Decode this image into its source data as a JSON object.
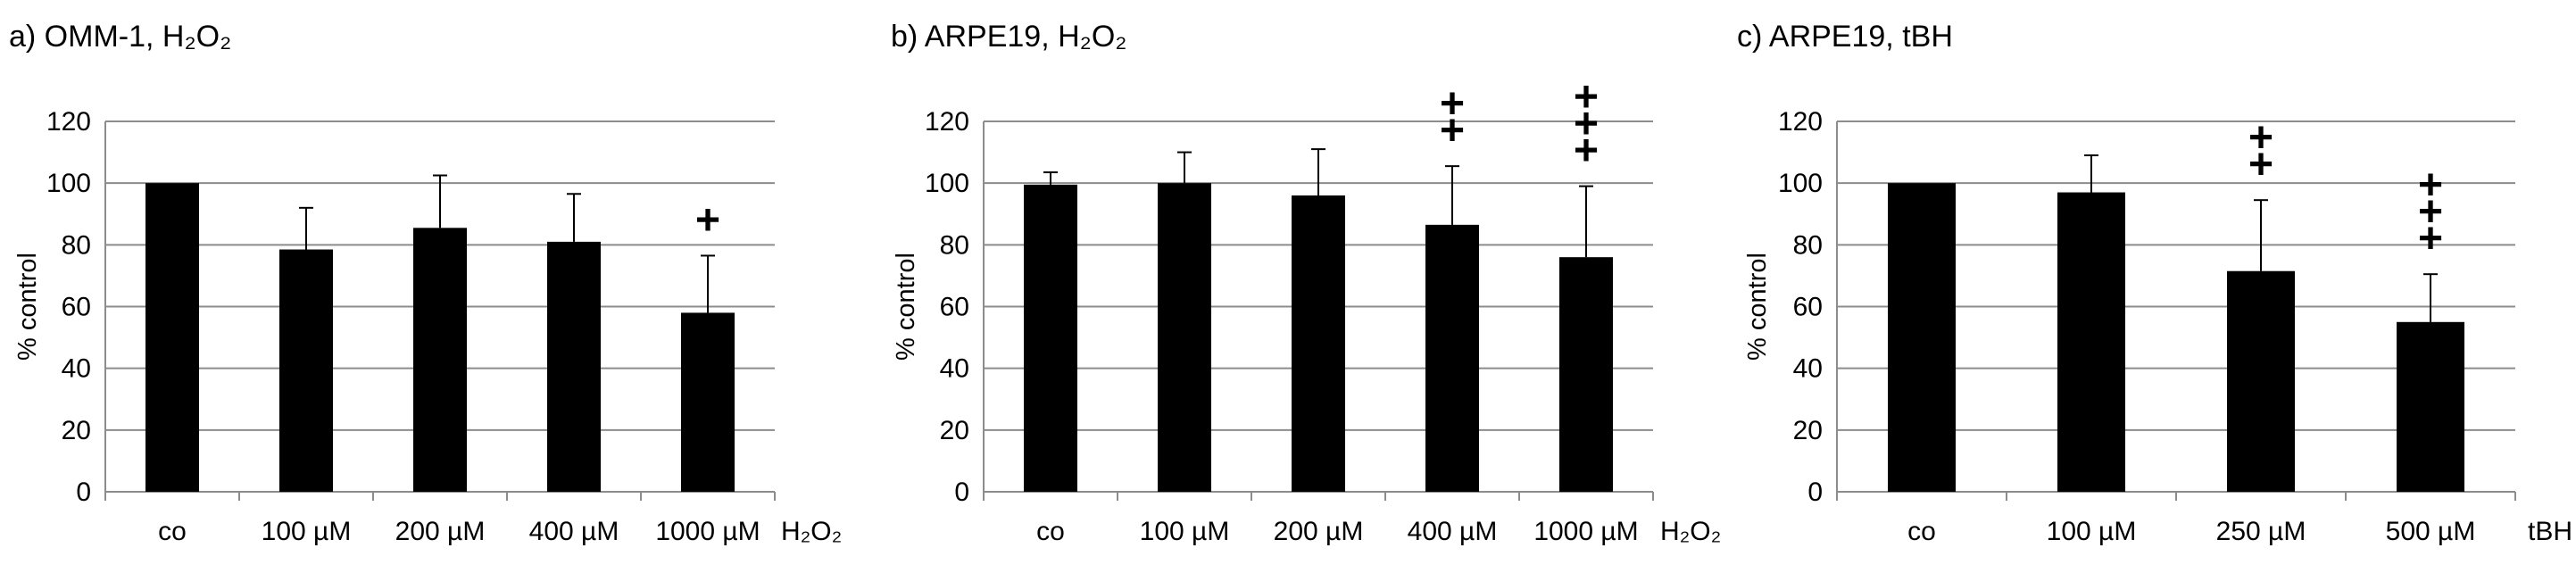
{
  "chart_data": [
    {
      "type": "bar",
      "title": "a) OMM-1, H₂O₂",
      "ylabel": "% control",
      "xlabel": "H₂O₂",
      "ylim": [
        0,
        120
      ],
      "yticks": [
        0,
        20,
        40,
        60,
        80,
        100,
        120
      ],
      "categories": [
        "co",
        "100 µM",
        "200 µM",
        "400 µM",
        "1000 µM"
      ],
      "values": [
        100,
        78.5,
        85.5,
        81,
        58
      ],
      "error_upper": [
        100,
        92,
        102.5,
        96.5,
        76.5
      ],
      "significance": [
        "",
        "",
        "",
        "",
        "+"
      ],
      "grid": true,
      "bar_color": "#000000"
    },
    {
      "type": "bar",
      "title": "b) ARPE19, H₂O₂",
      "ylabel": "% control",
      "xlabel": "H₂O₂",
      "ylim": [
        0,
        120
      ],
      "yticks": [
        0,
        20,
        40,
        60,
        80,
        100,
        120
      ],
      "categories": [
        "co",
        "100 µM",
        "200 µM",
        "400 µM",
        "1000 µM"
      ],
      "values": [
        99.5,
        100,
        96,
        86.5,
        76
      ],
      "error_upper": [
        103.5,
        110,
        111,
        105.5,
        99
      ],
      "significance": [
        "",
        "",
        "",
        "++",
        "+++"
      ],
      "grid": true,
      "bar_color": "#000000"
    },
    {
      "type": "bar",
      "title": "c) ARPE19, tBH",
      "ylabel": "% control",
      "xlabel": "tBH",
      "ylim": [
        0,
        120
      ],
      "yticks": [
        0,
        20,
        40,
        60,
        80,
        100,
        120
      ],
      "categories": [
        "co",
        "100 µM",
        "250 µM",
        "500 µM"
      ],
      "values": [
        100,
        97,
        71.5,
        55
      ],
      "error_upper": [
        100,
        109,
        94.5,
        70.5
      ],
      "significance": [
        "",
        "",
        "++",
        "+++"
      ],
      "grid": true,
      "bar_color": "#000000"
    }
  ]
}
